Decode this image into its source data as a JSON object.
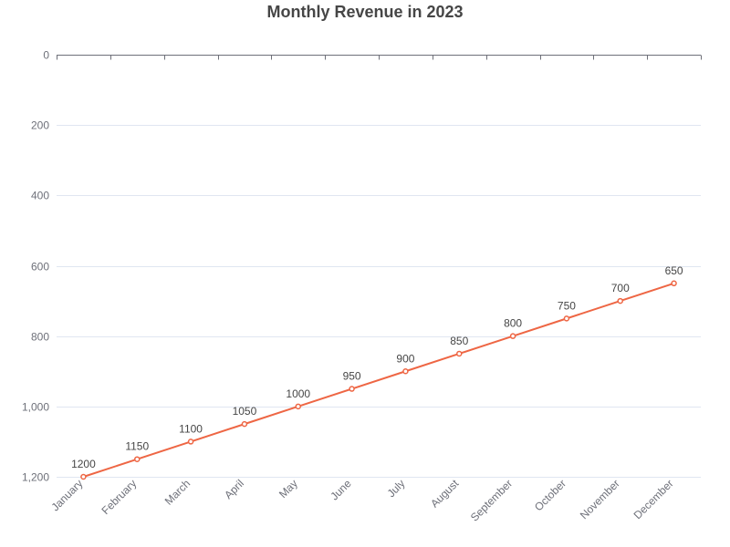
{
  "chart_data": {
    "type": "line",
    "title": "Monthly Revenue in 2023",
    "xlabel": "",
    "ylabel": "",
    "categories": [
      "January",
      "February",
      "March",
      "April",
      "May",
      "June",
      "July",
      "August",
      "September",
      "October",
      "November",
      "December"
    ],
    "series": [
      {
        "values": [
          1200,
          1150,
          1100,
          1050,
          1000,
          950,
          900,
          850,
          800,
          750,
          700,
          650
        ]
      }
    ],
    "data_labels": [
      "1200",
      "1150",
      "1100",
      "1050",
      "1000",
      "950",
      "900",
      "850",
      "800",
      "750",
      "700",
      "650"
    ],
    "y_ticks": [
      0,
      200,
      400,
      600,
      800,
      1000,
      1200
    ],
    "y_tick_labels": [
      "0",
      "200",
      "400",
      "600",
      "800",
      "1,000",
      "1,200"
    ],
    "ylim": [
      0,
      1200
    ],
    "y_inverted": true,
    "grid": true,
    "legend": "none",
    "x_label_rotation_deg": 45,
    "colors": {
      "line": "#ee6644",
      "grid": "#e0e6f1",
      "axis": "#6e7079",
      "tick_text": "#6e7079",
      "label_text": "#464646",
      "title_text": "#464646"
    }
  }
}
